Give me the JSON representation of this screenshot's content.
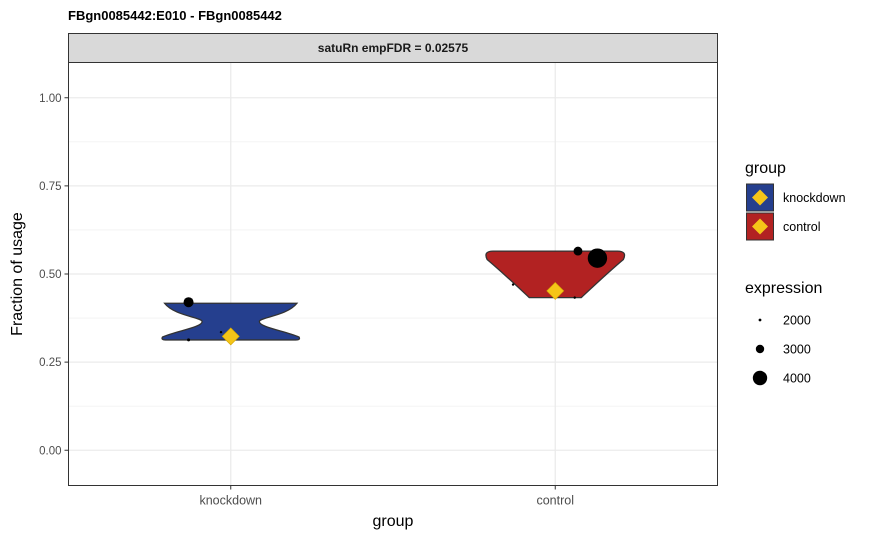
{
  "chart_data": {
    "type": "violin",
    "title": "FBgn0085442:E010  -  FBgn0085442",
    "facet_label": "satuRn empFDR = 0.02575",
    "xlabel": "group",
    "ylabel": "Fraction of usage",
    "ylim": [
      -0.1,
      1.1
    ],
    "y_ticks": [
      {
        "value": 0.0,
        "label": "0.00"
      },
      {
        "value": 0.25,
        "label": "0.25"
      },
      {
        "value": 0.5,
        "label": "0.50"
      },
      {
        "value": 0.75,
        "label": "0.75"
      },
      {
        "value": 1.0,
        "label": "1.00"
      }
    ],
    "grid": true,
    "categories": [
      "knockdown",
      "control"
    ],
    "groups": [
      {
        "name": "knockdown",
        "color": "#253f8e",
        "violin": {
          "min": 0.313,
          "max": 0.417,
          "waist": 0.365
        },
        "mean": 0.323,
        "points": [
          {
            "x_offset": -0.13,
            "y": 0.42,
            "expression": 3000
          },
          {
            "x_offset": -0.13,
            "y": 0.313,
            "expression": 1800
          },
          {
            "x_offset": -0.03,
            "y": 0.335,
            "expression": 1700
          }
        ]
      },
      {
        "name": "control",
        "color": "#b22222",
        "violin": {
          "min": 0.433,
          "max": 0.565,
          "waist": 0.5
        },
        "mean": 0.452,
        "points": [
          {
            "x_offset": 0.07,
            "y": 0.565,
            "expression": 2800
          },
          {
            "x_offset": 0.13,
            "y": 0.545,
            "expression": 4600
          },
          {
            "x_offset": -0.13,
            "y": 0.47,
            "expression": 1700
          },
          {
            "x_offset": 0.06,
            "y": 0.433,
            "expression": 1700
          }
        ]
      }
    ],
    "mean_marker_color": "#f5c518",
    "legend": {
      "placement": "right",
      "fill_title": "group",
      "fill_entries": [
        {
          "label": "knockdown",
          "color": "#253f8e"
        },
        {
          "label": "control",
          "color": "#b22222"
        }
      ],
      "size_title": "expression",
      "size_entries": [
        {
          "label": "2000",
          "value": 2000
        },
        {
          "label": "3000",
          "value": 3000
        },
        {
          "label": "4000",
          "value": 4000
        }
      ]
    }
  }
}
